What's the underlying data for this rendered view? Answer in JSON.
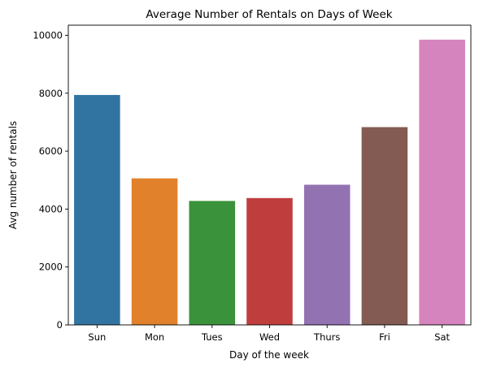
{
  "chart_data": {
    "type": "bar",
    "title": "Average Number of Rentals on Days of Week",
    "xlabel": "Day of the week",
    "ylabel": "Avg number of rentals",
    "categories": [
      "Sun",
      "Mon",
      "Tues",
      "Wed",
      "Thurs",
      "Fri",
      "Sat"
    ],
    "values": [
      7940,
      5060,
      4280,
      4380,
      4840,
      6830,
      9850
    ],
    "colors": [
      "#3274a1",
      "#e1812c",
      "#3a923a",
      "#c03d3e",
      "#9372b2",
      "#845b53",
      "#d684bd"
    ],
    "ylim": [
      0,
      10350
    ],
    "yticks": [
      0,
      2000,
      4000,
      6000,
      8000,
      10000
    ],
    "grid": false,
    "legend": false
  }
}
